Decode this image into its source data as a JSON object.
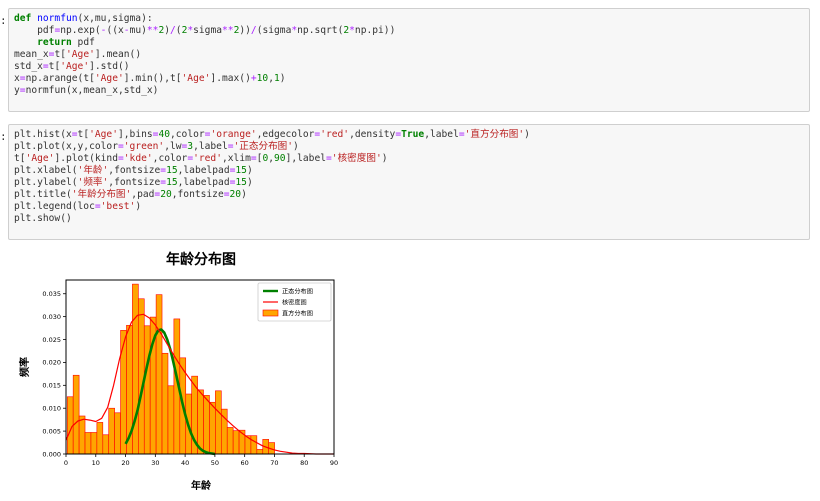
{
  "cells": [
    {
      "prompt": ":",
      "lines": [
        [
          {
            "t": "def",
            "c": "kw"
          },
          {
            "t": " "
          },
          {
            "t": "normfun",
            "c": "fn"
          },
          {
            "t": "(x,mu,sigma):"
          }
        ],
        [
          {
            "t": "    pdf"
          },
          {
            "t": "=",
            "c": "op"
          },
          {
            "t": "np.exp("
          },
          {
            "t": "-",
            "c": "op"
          },
          {
            "t": "((x"
          },
          {
            "t": "-",
            "c": "op"
          },
          {
            "t": "mu)"
          },
          {
            "t": "**",
            "c": "op"
          },
          {
            "t": "2",
            "c": "num"
          },
          {
            "t": ")"
          },
          {
            "t": "/",
            "c": "op"
          },
          {
            "t": "("
          },
          {
            "t": "2",
            "c": "num"
          },
          {
            "t": "*",
            "c": "op"
          },
          {
            "t": "sigma"
          },
          {
            "t": "**",
            "c": "op"
          },
          {
            "t": "2",
            "c": "num"
          },
          {
            "t": "))"
          },
          {
            "t": "/",
            "c": "op"
          },
          {
            "t": "(sigma"
          },
          {
            "t": "*",
            "c": "op"
          },
          {
            "t": "np.sqrt("
          },
          {
            "t": "2",
            "c": "num"
          },
          {
            "t": "*",
            "c": "op"
          },
          {
            "t": "np.pi))"
          }
        ],
        [
          {
            "t": "    "
          },
          {
            "t": "return",
            "c": "kw"
          },
          {
            "t": " pdf"
          }
        ],
        [
          {
            "t": "mean_x"
          },
          {
            "t": "=",
            "c": "op"
          },
          {
            "t": "t["
          },
          {
            "t": "'Age'",
            "c": "str"
          },
          {
            "t": "].mean()"
          }
        ],
        [
          {
            "t": "std_x"
          },
          {
            "t": "=",
            "c": "op"
          },
          {
            "t": "t["
          },
          {
            "t": "'Age'",
            "c": "str"
          },
          {
            "t": "].std()"
          }
        ],
        [
          {
            "t": "x"
          },
          {
            "t": "=",
            "c": "op"
          },
          {
            "t": "np.arange(t["
          },
          {
            "t": "'Age'",
            "c": "str"
          },
          {
            "t": "].min(),t["
          },
          {
            "t": "'Age'",
            "c": "str"
          },
          {
            "t": "].max()"
          },
          {
            "t": "+",
            "c": "op"
          },
          {
            "t": "10",
            "c": "num"
          },
          {
            "t": ","
          },
          {
            "t": "1",
            "c": "num"
          },
          {
            "t": ")"
          }
        ],
        [
          {
            "t": "y"
          },
          {
            "t": "=",
            "c": "op"
          },
          {
            "t": "normfun(x,mean_x,std_x)"
          }
        ]
      ]
    },
    {
      "prompt": ":",
      "lines": [
        [
          {
            "t": "plt.hist(x"
          },
          {
            "t": "=",
            "c": "op"
          },
          {
            "t": "t["
          },
          {
            "t": "'Age'",
            "c": "str"
          },
          {
            "t": "],bins"
          },
          {
            "t": "=",
            "c": "op"
          },
          {
            "t": "40",
            "c": "num"
          },
          {
            "t": ",color"
          },
          {
            "t": "=",
            "c": "op"
          },
          {
            "t": "'orange'",
            "c": "str"
          },
          {
            "t": ",edgecolor"
          },
          {
            "t": "=",
            "c": "op"
          },
          {
            "t": "'red'",
            "c": "str"
          },
          {
            "t": ",density"
          },
          {
            "t": "=",
            "c": "op"
          },
          {
            "t": "True",
            "c": "kw"
          },
          {
            "t": ",label"
          },
          {
            "t": "=",
            "c": "op"
          },
          {
            "t": "'直方分布图'",
            "c": "str"
          },
          {
            "t": ")"
          }
        ],
        [
          {
            "t": "plt.plot(x,y,color"
          },
          {
            "t": "=",
            "c": "op"
          },
          {
            "t": "'green'",
            "c": "str"
          },
          {
            "t": ",lw"
          },
          {
            "t": "=",
            "c": "op"
          },
          {
            "t": "3",
            "c": "num"
          },
          {
            "t": ",label"
          },
          {
            "t": "=",
            "c": "op"
          },
          {
            "t": "'正态分布图'",
            "c": "str"
          },
          {
            "t": ")"
          }
        ],
        [
          {
            "t": "t["
          },
          {
            "t": "'Age'",
            "c": "str"
          },
          {
            "t": "].plot(kind"
          },
          {
            "t": "=",
            "c": "op"
          },
          {
            "t": "'kde'",
            "c": "str"
          },
          {
            "t": ",color"
          },
          {
            "t": "=",
            "c": "op"
          },
          {
            "t": "'red'",
            "c": "str"
          },
          {
            "t": ",xlim"
          },
          {
            "t": "=",
            "c": "op"
          },
          {
            "t": "["
          },
          {
            "t": "0",
            "c": "num"
          },
          {
            "t": ","
          },
          {
            "t": "90",
            "c": "num"
          },
          {
            "t": "],label"
          },
          {
            "t": "=",
            "c": "op"
          },
          {
            "t": "'核密度图'",
            "c": "str"
          },
          {
            "t": ")"
          }
        ],
        [
          {
            "t": "plt.xlabel("
          },
          {
            "t": "'年龄'",
            "c": "str"
          },
          {
            "t": ",fontsize"
          },
          {
            "t": "=",
            "c": "op"
          },
          {
            "t": "15",
            "c": "num"
          },
          {
            "t": ",labelpad"
          },
          {
            "t": "=",
            "c": "op"
          },
          {
            "t": "15",
            "c": "num"
          },
          {
            "t": ")"
          }
        ],
        [
          {
            "t": "plt.ylabel("
          },
          {
            "t": "'频率'",
            "c": "str"
          },
          {
            "t": ",fontsize"
          },
          {
            "t": "=",
            "c": "op"
          },
          {
            "t": "15",
            "c": "num"
          },
          {
            "t": ",labelpad"
          },
          {
            "t": "=",
            "c": "op"
          },
          {
            "t": "15",
            "c": "num"
          },
          {
            "t": ")"
          }
        ],
        [
          {
            "t": "plt.title("
          },
          {
            "t": "'年龄分布图'",
            "c": "str"
          },
          {
            "t": ",pad"
          },
          {
            "t": "=",
            "c": "op"
          },
          {
            "t": "20",
            "c": "num"
          },
          {
            "t": ",fontsize"
          },
          {
            "t": "=",
            "c": "op"
          },
          {
            "t": "20",
            "c": "num"
          },
          {
            "t": ")"
          }
        ],
        [
          {
            "t": "plt.legend(loc"
          },
          {
            "t": "=",
            "c": "op"
          },
          {
            "t": "'best'",
            "c": "str"
          },
          {
            "t": ")"
          }
        ],
        [
          {
            "t": "plt.show()"
          }
        ]
      ]
    }
  ],
  "chart_data": {
    "type": "bar",
    "title": "年龄分布图",
    "xlabel": "年龄",
    "ylabel": "频率",
    "xlim": [
      0,
      90
    ],
    "ylim": [
      0,
      0.038
    ],
    "xticks": [
      "0",
      "10",
      "20",
      "30",
      "40",
      "50",
      "60",
      "70",
      "80",
      "90"
    ],
    "yticks": [
      "0.000",
      "0.005",
      "0.010",
      "0.015",
      "0.020",
      "0.025",
      "0.030",
      "0.035"
    ],
    "legend_position": "top-right",
    "colors": {
      "hist_fill": "#ffa500",
      "hist_edge": "#ff0000",
      "normal": "#008000",
      "kde": "#ff0000"
    },
    "histogram": {
      "label": "直方分布图",
      "bins": [
        0.42,
        2.41,
        4.4,
        6.39,
        8.38,
        10.37,
        12.36,
        14.35,
        16.33,
        18.32,
        20.31,
        22.3,
        24.29,
        26.28,
        28.27,
        30.26,
        32.25,
        34.24,
        36.23,
        38.22,
        40.21,
        42.2,
        44.19,
        46.18,
        48.17,
        50.16,
        52.15,
        54.14,
        56.13,
        58.12,
        60.11,
        62.1,
        64.09,
        66.08,
        68.07,
        70.06,
        72.05,
        74.04,
        76.03,
        78.02,
        80.0
      ],
      "values": [
        0.0125,
        0.0172,
        0.0083,
        0.0047,
        0.0047,
        0.0069,
        0.0042,
        0.01,
        0.009,
        0.027,
        0.0281,
        0.0371,
        0.0339,
        0.028,
        0.0299,
        0.0348,
        0.022,
        0.0149,
        0.0295,
        0.021,
        0.0131,
        0.017,
        0.014,
        0.0128,
        0.0113,
        0.0138,
        0.0098,
        0.0058,
        0.0051,
        0.0052,
        0.004,
        0.004,
        0.001,
        0.0032,
        0.0025,
        0.0,
        0.0,
        0.0,
        0.0,
        0.0
      ]
    },
    "series": [
      {
        "name": "正态分布图",
        "x": [
          20,
          21,
          22,
          23,
          24,
          25,
          26,
          27,
          28,
          29,
          30,
          31,
          32,
          33,
          34,
          35,
          36,
          37,
          38,
          39,
          40,
          41,
          42,
          43,
          44,
          45,
          46,
          47,
          48,
          49,
          50
        ],
        "y": [
          0.0022,
          0.0034,
          0.005,
          0.0071,
          0.0095,
          0.0124,
          0.0155,
          0.0186,
          0.0215,
          0.024,
          0.0259,
          0.027,
          0.0272,
          0.0265,
          0.025,
          0.0229,
          0.0202,
          0.0173,
          0.0143,
          0.0114,
          0.0087,
          0.0064,
          0.0045,
          0.0031,
          0.002,
          0.0012,
          0.0007,
          0.0004,
          0.0002,
          0.0001,
          0.0
        ]
      },
      {
        "name": "核密度图",
        "x": [
          0,
          2,
          4,
          6,
          8,
          10,
          12,
          14,
          16,
          18,
          20,
          22,
          24,
          26,
          28,
          30,
          32,
          34,
          36,
          38,
          40,
          42,
          44,
          46,
          48,
          50,
          52,
          54,
          56,
          58,
          60,
          62,
          64,
          66,
          68,
          70,
          72,
          74,
          76,
          78,
          80,
          84,
          88,
          90
        ],
        "y": [
          0.003,
          0.006,
          0.0072,
          0.0076,
          0.0074,
          0.0071,
          0.0078,
          0.0102,
          0.015,
          0.0208,
          0.0256,
          0.0288,
          0.0303,
          0.0305,
          0.0297,
          0.0282,
          0.0262,
          0.024,
          0.0218,
          0.0197,
          0.0178,
          0.016,
          0.0143,
          0.0128,
          0.0114,
          0.01,
          0.0087,
          0.0074,
          0.0062,
          0.0051,
          0.0041,
          0.0032,
          0.0025,
          0.0018,
          0.0013,
          0.0009,
          0.0006,
          0.0004,
          0.0002,
          0.0001,
          0.0001,
          0.0,
          0.0,
          0.0
        ]
      }
    ]
  }
}
